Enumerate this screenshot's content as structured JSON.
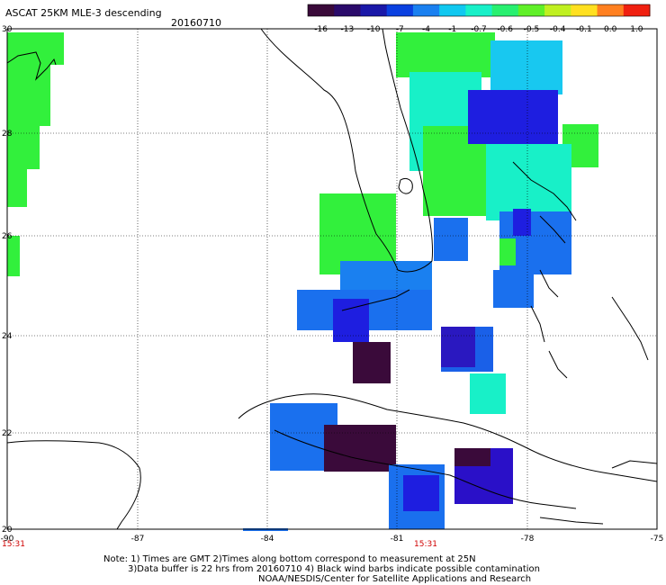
{
  "header": {
    "title": "ASCAT 25KM MLE-3 descending",
    "date": "20160710"
  },
  "colorbar": {
    "ticks": [
      "-16",
      "-13",
      "-10",
      "-7",
      "-4",
      "-1",
      "-0.7",
      "-0.6",
      "-0.5",
      "-0.4",
      "-0.1",
      "0.0",
      "1.0"
    ],
    "colors": [
      "#3a0a3a",
      "#2a0a6a",
      "#1a18a8",
      "#0a40e0",
      "#1a80f0",
      "#10c8f0",
      "#18f0c8",
      "#28f070",
      "#60f028",
      "#c0f020",
      "#ffe020",
      "#ff8020",
      "#f02010"
    ]
  },
  "axes": {
    "lat_labels": [
      "30",
      "28",
      "26",
      "24",
      "22",
      "20"
    ],
    "lon_labels": [
      "-90",
      "-87",
      "-84",
      "-81",
      "-78",
      "-75"
    ],
    "times": [
      "15:31",
      "15:31"
    ]
  },
  "footer": {
    "note1": "Note: 1) Times are GMT 2)Times along bottom correspond to measurement at 25N",
    "note2": "3)Data buffer is 22 hrs from 20160710 4) Black wind barbs indicate possible contamination",
    "note3": "NOAA/NESDIS/Center for Satellite Applications and Research"
  },
  "palette": {
    "green": "#32f03c",
    "cyan": "#18f0c8",
    "blue": "#1a70ee",
    "darkblue": "#1e1ee0",
    "navy": "#2a0a6a",
    "dark": "#3a0a3a"
  }
}
